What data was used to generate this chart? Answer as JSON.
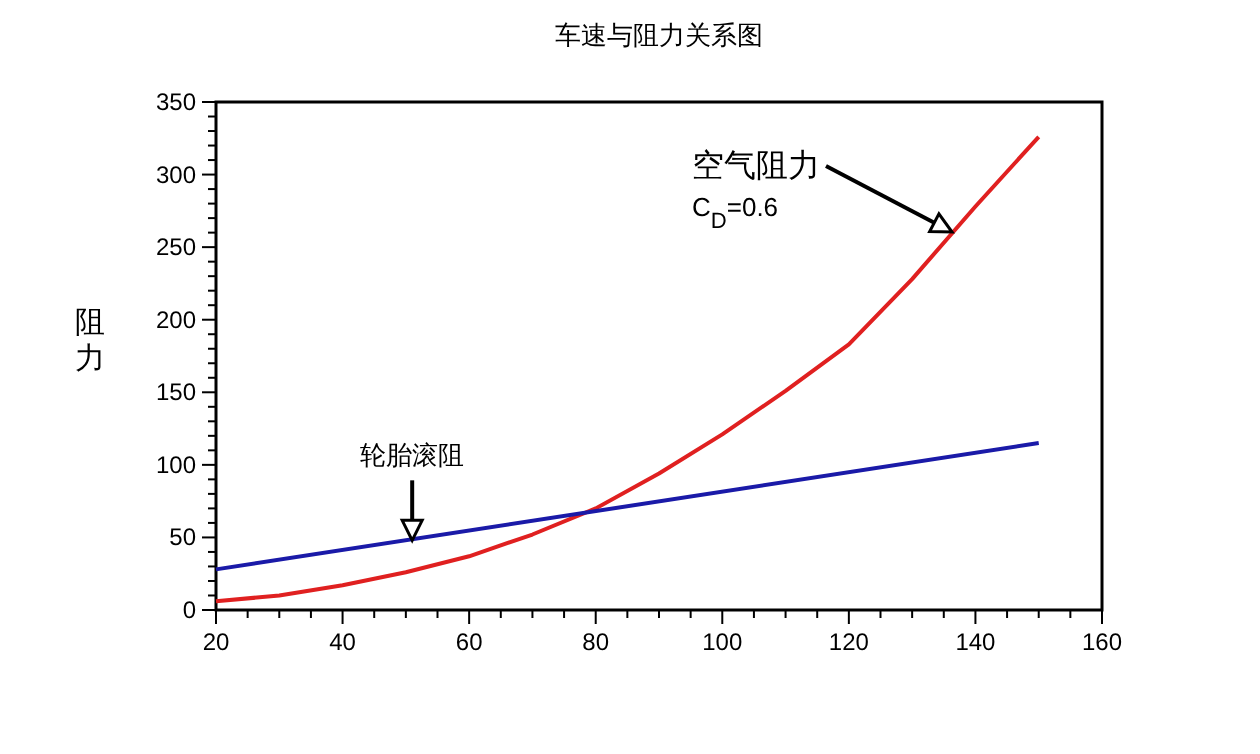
{
  "chart_data": {
    "type": "line",
    "title": "车速与阻力关系图",
    "ylabel": "阻力",
    "x": [
      20,
      30,
      40,
      50,
      60,
      70,
      80,
      90,
      100,
      110,
      120,
      130,
      140,
      150
    ],
    "series": [
      {
        "color": "#e02020",
        "values": [
          6,
          10,
          17,
          26,
          37,
          52,
          70,
          94,
          121,
          151,
          183,
          228,
          278,
          326
        ]
      },
      {
        "color": "#1a1aa8",
        "x": [
          20,
          150
        ],
        "values": [
          28,
          115
        ]
      }
    ],
    "xlim": [
      20,
      160
    ],
    "xticks": [
      20,
      40,
      60,
      80,
      100,
      120,
      140,
      160
    ],
    "ylim": [
      0,
      350
    ],
    "yticks": [
      0,
      50,
      100,
      150,
      200,
      250,
      300,
      350
    ],
    "grid": false,
    "marker": "none",
    "line_style": "solid",
    "annotations": [
      "空气阻力",
      "C$_{D}$=0.6",
      {
        "text": "轮胎滚阻",
        "x": 51,
        "y": 48
      }
    ]
  }
}
